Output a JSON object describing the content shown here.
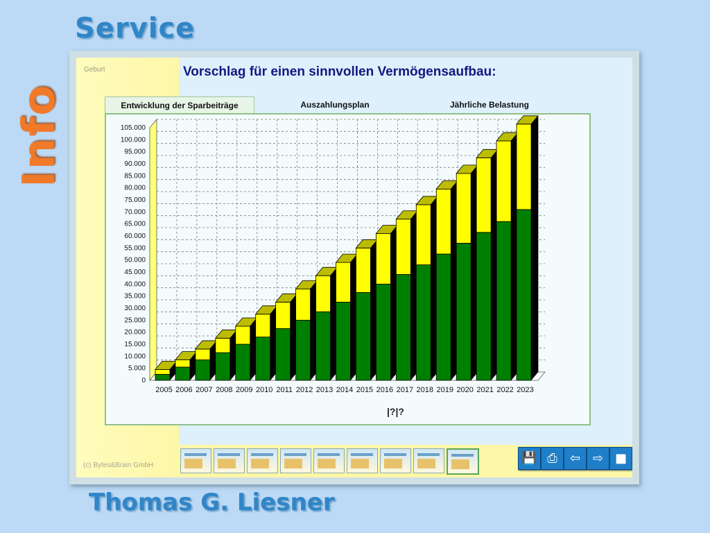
{
  "page": {
    "service_heading": "Service",
    "info_heading": "Info",
    "author": "Thomas G. Liesner"
  },
  "window": {
    "birth_label": "Geburt",
    "title": "Vorschlag für einen sinnvollen Vermögensaufbau:",
    "copyright": "(c) Bytes&Brain GmbH",
    "tabs": [
      {
        "label": "Entwicklung der Sparbeiträge",
        "active": true
      },
      {
        "label": "Auszahlungsplan",
        "active": false
      },
      {
        "label": "Jährliche Belastung",
        "active": false
      }
    ],
    "footer_mark": "|?|?"
  },
  "chart_data": {
    "type": "bar",
    "stacked": true,
    "three_d": true,
    "categories": [
      "2005",
      "2006",
      "2007",
      "2008",
      "2009",
      "2010",
      "2011",
      "2012",
      "2013",
      "2014",
      "2015",
      "2016",
      "2017",
      "2018",
      "2019",
      "2020",
      "2021",
      "2022",
      "2023"
    ],
    "series": [
      {
        "color": "#008000",
        "values": [
          2500,
          5500,
          8500,
          11500,
          15000,
          18000,
          21500,
          25000,
          28500,
          32500,
          36500,
          40000,
          44000,
          48000,
          52500,
          57000,
          61500,
          66000,
          71000
        ]
      },
      {
        "color": "#ffff00",
        "values": [
          2000,
          3000,
          4500,
          6000,
          7500,
          9500,
          11000,
          13000,
          15000,
          16500,
          18500,
          21000,
          23000,
          25000,
          27000,
          29000,
          31000,
          33500,
          35500
        ]
      }
    ],
    "y_ticks": [
      "0",
      "5.000",
      "10.000",
      "15.000",
      "20.000",
      "25.000",
      "30.000",
      "35.000",
      "40.000",
      "45.000",
      "50.000",
      "55.000",
      "60.000",
      "65.000",
      "70.000",
      "75.000",
      "80.000",
      "85.000",
      "90.000",
      "95.000",
      "100.000",
      "105.000"
    ],
    "ylim": [
      0,
      105000
    ],
    "grid": true,
    "colors": {
      "side": "#000000",
      "top": "#bdbd00",
      "wall": "#ffff7a",
      "grid": "#7a7a7a"
    }
  },
  "bottom_bar": {
    "thumbnails": 9,
    "active_thumbnail": 8,
    "buttons": [
      {
        "icon": "save-icon",
        "glyph": "💾"
      },
      {
        "icon": "print-icon",
        "glyph": "⎙"
      },
      {
        "icon": "back-arrow-icon",
        "glyph": "⇦"
      },
      {
        "icon": "forward-arrow-icon",
        "glyph": "⇨"
      },
      {
        "icon": "stop-icon",
        "glyph": "■"
      }
    ]
  }
}
